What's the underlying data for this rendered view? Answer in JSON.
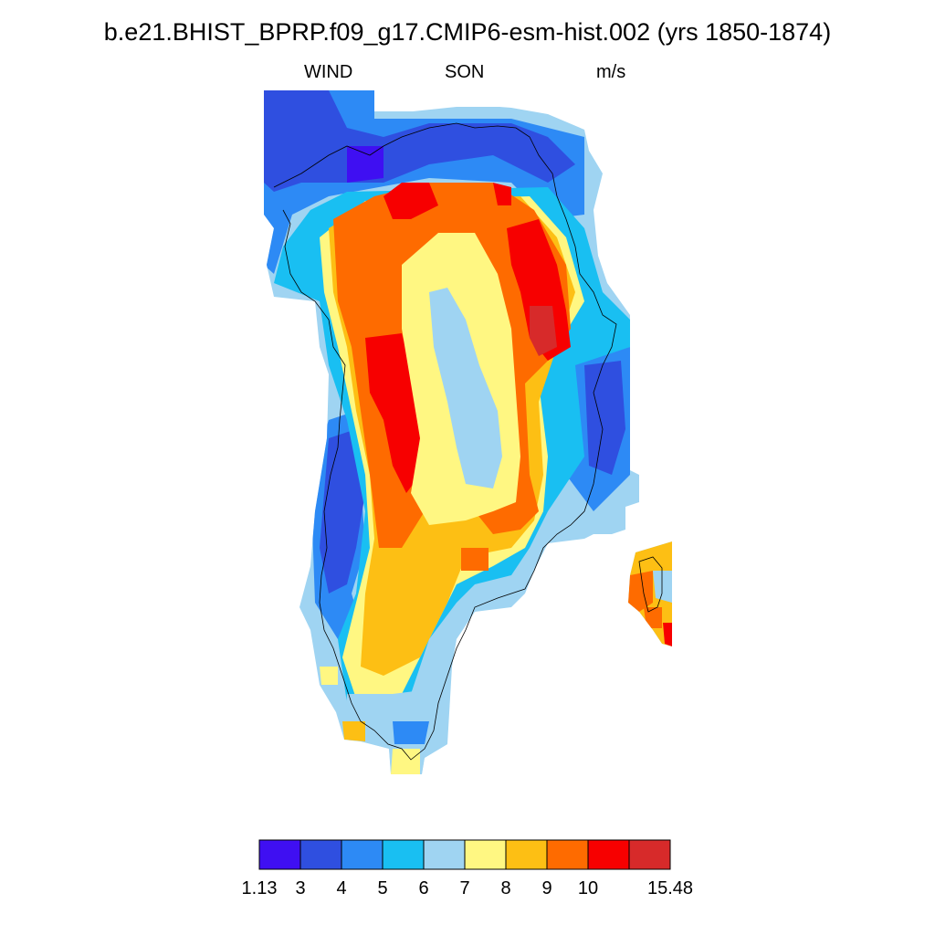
{
  "title": "b.e21.BHIST_BPRP.f09_g17.CMIP6-esm-hist.002 (yrs 1850-1874)",
  "variable": "WIND",
  "season": "SON",
  "units": "m/s",
  "colorbar": {
    "colors": [
      "#3f0ff2",
      "#2f4fe0",
      "#2d8af5",
      "#19bff2",
      "#9fd4f2",
      "#fff782",
      "#fdbf14",
      "#fe6b00",
      "#f70000",
      "#d72a2a"
    ],
    "labels": [
      "1.13",
      "3",
      "4",
      "5",
      "6",
      "7",
      "8",
      "9",
      "10",
      "15.48"
    ]
  },
  "map_data": {
    "region": "Greenland",
    "field": "WIND",
    "season": "SON",
    "units": "m/s",
    "min": 1.13,
    "max": 15.48,
    "levels": [
      1.13,
      3,
      4,
      5,
      6,
      7,
      8,
      9,
      10,
      15.48
    ]
  }
}
